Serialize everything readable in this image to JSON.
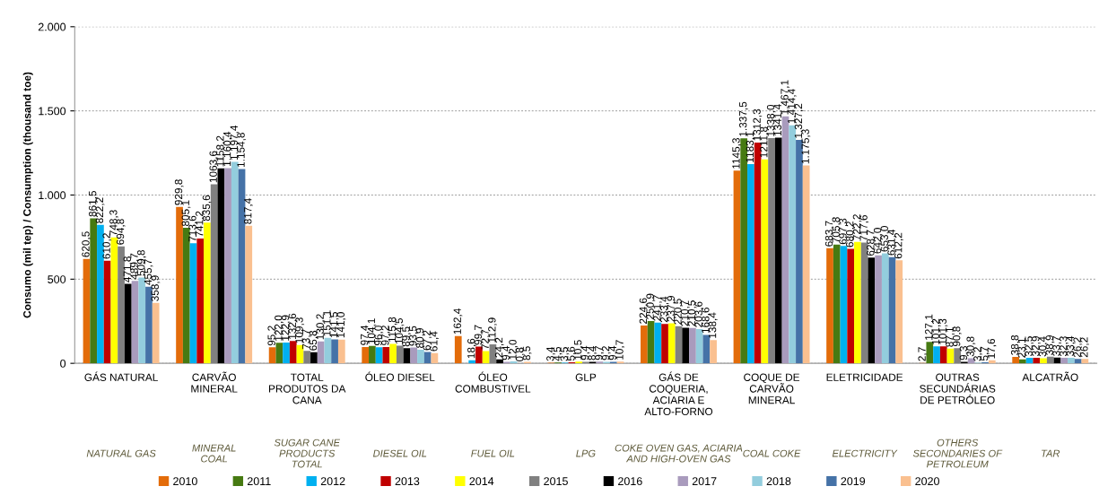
{
  "chart_data": {
    "type": "bar",
    "ylabel": "Consumo (mil tep) / Consumption (thousand toe)",
    "categories": [
      "GÁS NATURAL",
      "CARVÃO\nMINERAL",
      "TOTAL\nPRODUTOS DA\nCANA",
      "ÓLEO DIESEL",
      "ÓLEO\nCOMBUSTIVEL",
      "GLP",
      "GÁS DE\nCOQUERIA,\nACIARIA E\nALTO-FORNO",
      "COQUE DE\nCARVÃO\nMINERAL",
      "ELETRICIDADE",
      "OUTRAS\nSECUNDÁRIAS\nDE PETRÓLEO",
      "ALCATRÃO"
    ],
    "annotations": [
      "NATURAL GAS",
      "MINERAL\nCOAL",
      "SUGAR CANE\nPRODUCTS\nTOTAL",
      "DIESEL OIL",
      "FUEL OIL",
      "LPG",
      "COKE OVEN GAS, ACIARIA\nAND HIGH-OVEN GAS",
      "COAL COKE",
      "ELECTRICITY",
      "OTHERS\nSECONDARIES OF\nPETROLEUM",
      "TAR"
    ],
    "ylim": [
      0,
      2000
    ],
    "yticks": [
      {
        "value": 0,
        "label": "0"
      },
      {
        "value": 500,
        "label": "500"
      },
      {
        "value": 1000,
        "label": "1.000"
      },
      {
        "value": 1500,
        "label": "1.500"
      },
      {
        "value": 2000,
        "label": "2.000"
      }
    ],
    "grid": "y",
    "legend": "bottom",
    "series": [
      {
        "name": "2010",
        "color": "#e36c0a",
        "values": [
          620.5,
          929.8,
          95.2,
          97.4,
          162.4,
          3.4,
          224.6,
          1145.3,
          683.7,
          2.7,
          38.8
        ],
        "value_labels": [
          "620,5",
          "929,8",
          "95,2",
          "97,4",
          "162,4",
          "3,4",
          "224,6",
          "1145,3",
          "683,7",
          "2,7",
          "38,8"
        ]
      },
      {
        "name": "2011",
        "color": "#467a12",
        "values": [
          861.5,
          805.1,
          122.0,
          104.1,
          null,
          4.5,
          250.9,
          1337.5,
          705.8,
          127.1,
          23.1
        ],
        "value_labels": [
          "861,5",
          "805,1",
          "122,0",
          "104,1",
          null,
          "4,5",
          "250,9",
          "1.337,5",
          "705,8",
          "127,1",
          "23,1"
        ]
      },
      {
        "name": "2012",
        "color": "#00b0f0",
        "values": [
          822.2,
          713.6,
          122.9,
          96.0,
          18.6,
          3.5,
          241.7,
          1183.1,
          697.3,
          101.2,
          32.5
        ],
        "value_labels": [
          "822,2",
          "713,6",
          "122,9",
          "96,0",
          "18,6",
          "3,5",
          "241,7",
          "1183,1",
          "697,3",
          "101,2",
          "32,5"
        ]
      },
      {
        "name": "2013",
        "color": "#c00000",
        "values": [
          610.2,
          741.2,
          132.6,
          97.2,
          99.7,
          5.6,
          233.4,
          1312.3,
          680.2,
          101.3,
          32.9
        ],
        "value_labels": [
          "610,2",
          "741,2",
          "132,6",
          "97,2",
          "99,7",
          "5,6",
          "233,4",
          "1312,3",
          "680,2",
          "101,3",
          "32,9"
        ]
      },
      {
        "name": "2014",
        "color": "#ffff00",
        "values": [
          748.3,
          835.6,
          109.3,
          115.8,
          72.7,
          10.5,
          237.9,
          1211.8,
          722.2,
          87.1,
          30.4
        ],
        "value_labels": [
          "748,3",
          "835,6",
          "109,3",
          "115,8",
          "72,7",
          "10,5",
          "237,9",
          "1211,8",
          "722,2",
          "87,1",
          "30,4"
        ]
      },
      {
        "name": "2015",
        "color": "#808080",
        "values": [
          694.8,
          1063.6,
          73.7,
          104.5,
          112.9,
          9.4,
          220.5,
          1338.0,
          717.6,
          90.8,
          38.9
        ],
        "value_labels": [
          "694,8",
          "1063,6",
          "73,7",
          "104,5",
          "112,9",
          "9,4",
          "220,5",
          "1338,0",
          "717,6",
          "90,8",
          "38,9"
        ]
      },
      {
        "name": "2016",
        "color": "#000000",
        "values": [
          471.8,
          1158.2,
          65.8,
          89.5,
          24.2,
          8.4,
          210.7,
          1341.4,
          628.7,
          9.3,
          33.7
        ],
        "value_labels": [
          "471,8",
          "1158,2",
          "65,8",
          "89,5",
          "24,2",
          "8,4",
          "210,7",
          "1341,4",
          "628,7",
          "9,3",
          "33,7"
        ]
      },
      {
        "name": "2017",
        "color": "#a99bbd",
        "values": [
          489.7,
          1160.4,
          130.2,
          93.5,
          9.4,
          9.7,
          210.5,
          1467.1,
          642.0,
          30.8,
          32.3
        ],
        "value_labels": [
          "489,7",
          "1.160,4",
          "130,2",
          "93,5",
          "9,4",
          "9,7",
          "210,5",
          "1.467,1",
          "642,0",
          "30,8",
          "32,3"
        ]
      },
      {
        "name": "2018",
        "color": "#93cddd",
        "values": [
          509.8,
          1197.4,
          151.1,
          80.9,
          12.0,
          9.2,
          203.6,
          1414.4,
          653.0,
          3.2,
          33.4
        ],
        "value_labels": [
          "509,8",
          "1.197,4",
          "151,1",
          "80,9",
          "12,0",
          "9,2",
          "203,6",
          "1.414,4",
          "653,0",
          "3,2",
          "33,4"
        ]
      },
      {
        "name": "2019",
        "color": "#4572a7",
        "values": [
          455.7,
          1154.8,
          141.5,
          67.2,
          0.8,
          9.4,
          168.6,
          1327.2,
          631.4,
          5.7,
          26.2
        ],
        "value_labels": [
          "455,7",
          "1.154,8",
          "141,5",
          "67,2",
          "0,8",
          "9,4",
          "168,6",
          "1.327,2",
          "631,4",
          "5,7",
          "26,2"
        ]
      },
      {
        "name": "2020",
        "color": "#fac090",
        "values": [
          358.9,
          817.4,
          141.0,
          61.4,
          8.5,
          10.7,
          138.4,
          1175.3,
          612.2,
          17.6,
          26.2
        ],
        "value_labels": [
          "358,9",
          "817,4",
          "141,0",
          "61,4",
          "8,5",
          "10,7",
          "138,4",
          "1.175,3",
          "612,2",
          "17,6",
          "26,2"
        ]
      }
    ]
  }
}
